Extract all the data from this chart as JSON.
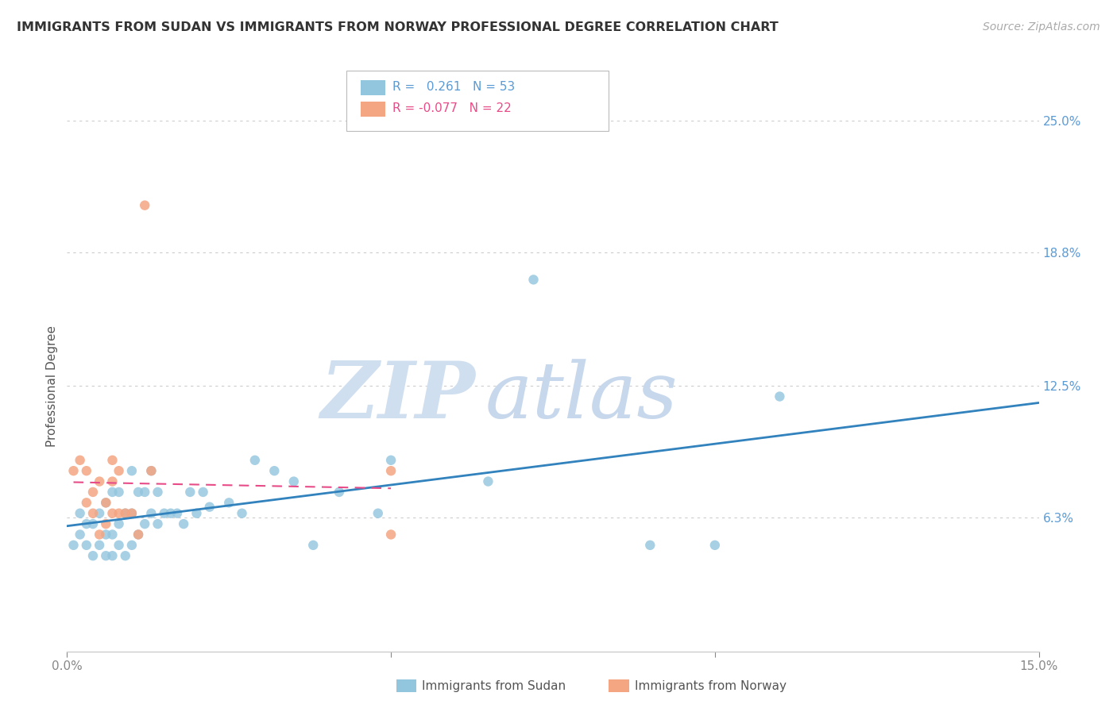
{
  "title": "IMMIGRANTS FROM SUDAN VS IMMIGRANTS FROM NORWAY PROFESSIONAL DEGREE CORRELATION CHART",
  "source": "Source: ZipAtlas.com",
  "ylabel": "Professional Degree",
  "legend_sudan": "Immigrants from Sudan",
  "legend_norway": "Immigrants from Norway",
  "sudan_R": 0.261,
  "sudan_N": 53,
  "norway_R": -0.077,
  "norway_N": 22,
  "xlim": [
    0.0,
    0.15
  ],
  "ylim": [
    0.0,
    0.25
  ],
  "ytick_values": [
    0.063,
    0.125,
    0.188,
    0.25
  ],
  "ytick_labels": [
    "6.3%",
    "12.5%",
    "18.8%",
    "25.0%"
  ],
  "xtick_values": [
    0.0,
    0.05,
    0.1,
    0.15
  ],
  "xtick_labels": [
    "0.0%",
    "",
    "",
    "15.0%"
  ],
  "watermark_zip": "ZIP",
  "watermark_atlas": "atlas",
  "blue_color": "#92c5de",
  "pink_color": "#f4a582",
  "line_blue": "#3182bd",
  "line_pink": "#e84c88",
  "grid_color": "#cccccc",
  "right_tick_color": "#5b9bd5",
  "sudan_points_x": [
    0.001,
    0.002,
    0.002,
    0.003,
    0.003,
    0.004,
    0.004,
    0.005,
    0.005,
    0.006,
    0.006,
    0.006,
    0.007,
    0.007,
    0.007,
    0.008,
    0.008,
    0.008,
    0.009,
    0.009,
    0.01,
    0.01,
    0.01,
    0.011,
    0.011,
    0.012,
    0.012,
    0.013,
    0.013,
    0.014,
    0.014,
    0.015,
    0.016,
    0.017,
    0.018,
    0.019,
    0.02,
    0.021,
    0.022,
    0.025,
    0.027,
    0.029,
    0.032,
    0.035,
    0.038,
    0.042,
    0.048,
    0.05,
    0.065,
    0.072,
    0.09,
    0.1,
    0.11
  ],
  "sudan_points_y": [
    0.05,
    0.055,
    0.065,
    0.05,
    0.06,
    0.045,
    0.06,
    0.05,
    0.065,
    0.045,
    0.055,
    0.07,
    0.045,
    0.055,
    0.075,
    0.05,
    0.06,
    0.075,
    0.045,
    0.065,
    0.05,
    0.065,
    0.085,
    0.055,
    0.075,
    0.06,
    0.075,
    0.065,
    0.085,
    0.06,
    0.075,
    0.065,
    0.065,
    0.065,
    0.06,
    0.075,
    0.065,
    0.075,
    0.068,
    0.07,
    0.065,
    0.09,
    0.085,
    0.08,
    0.05,
    0.075,
    0.065,
    0.09,
    0.08,
    0.175,
    0.05,
    0.05,
    0.12
  ],
  "norway_points_x": [
    0.001,
    0.002,
    0.003,
    0.003,
    0.004,
    0.004,
    0.005,
    0.005,
    0.006,
    0.006,
    0.007,
    0.007,
    0.007,
    0.008,
    0.008,
    0.009,
    0.01,
    0.011,
    0.012,
    0.013,
    0.05,
    0.05
  ],
  "norway_points_y": [
    0.085,
    0.09,
    0.07,
    0.085,
    0.065,
    0.075,
    0.055,
    0.08,
    0.06,
    0.07,
    0.065,
    0.08,
    0.09,
    0.065,
    0.085,
    0.065,
    0.065,
    0.055,
    0.21,
    0.085,
    0.085,
    0.055
  ],
  "background_color": "#ffffff"
}
